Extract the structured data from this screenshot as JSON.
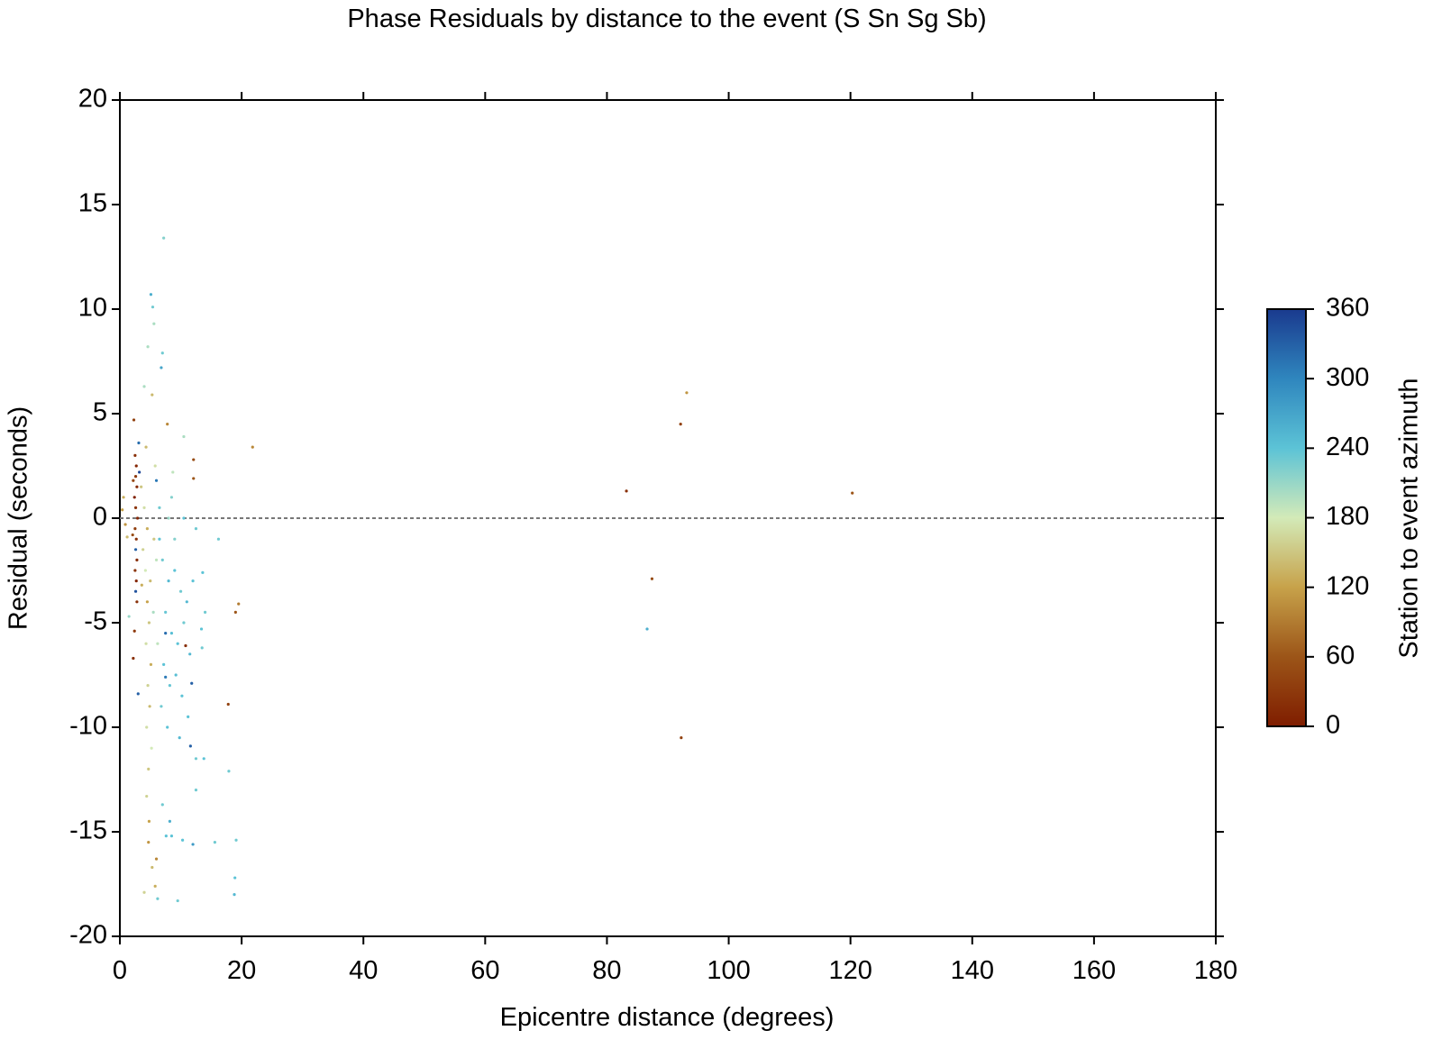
{
  "chart_data": {
    "type": "scatter",
    "title": "Phase Residuals by distance to the event (S Sn Sg Sb)",
    "x_label": "Epicentre distance (degrees)",
    "y_label": "Residual (seconds)",
    "xlim": [
      0,
      180
    ],
    "xticks": [
      0,
      20,
      40,
      60,
      80,
      100,
      120,
      140,
      160,
      180
    ],
    "ylim": [
      -20,
      20
    ],
    "yticks": [
      -20,
      -15,
      -10,
      -5,
      0,
      5,
      10,
      15,
      20
    ],
    "reference_line": 0,
    "colorbar": {
      "label": "Station to event azimuth",
      "lim": [
        0,
        360
      ],
      "ticks": [
        0,
        60,
        120,
        180,
        240,
        300,
        360
      ],
      "colors": [
        "#7f1d00",
        "#9c5518",
        "#c7a24a",
        "#d3eab8",
        "#5cc3d6",
        "#2f86be",
        "#1a3a8e"
      ]
    },
    "x": [
      21.8,
      83.2,
      93.1,
      92.1,
      120.3,
      87.4,
      86.6,
      92.2,
      19.5,
      19.0,
      17.8,
      17.9,
      18.9,
      18.8,
      19.1,
      15.6,
      16.2,
      7.2,
      5.1,
      5.4,
      5.6,
      4.6,
      7.0,
      6.8,
      4.0,
      5.3,
      2.5,
      2.7,
      2.6,
      2.8,
      2.4,
      2.6,
      2.9,
      2.5,
      2.7,
      2.6,
      2.8,
      2.5,
      2.7,
      2.6,
      2.8,
      2.3,
      2.4,
      2.2,
      3.0,
      3.1,
      3.2,
      2.2,
      2.1,
      1.5,
      3.5,
      4.0,
      4.5,
      3.8,
      4.2,
      5.0,
      4.5,
      4.8,
      4.3,
      5.1,
      4.6,
      4.9,
      4.4,
      5.2,
      4.7,
      4.4,
      4.8,
      4.7,
      5.3,
      4.0,
      5.8,
      6.0,
      0.6,
      0.9,
      1.2,
      0.4,
      6.0,
      5.5,
      6.2,
      5.8,
      4.3,
      7.8,
      8.7,
      5.6,
      3.6,
      6.5,
      7.0,
      8.0,
      9.0,
      10.0,
      11.0,
      12.0,
      7.5,
      8.5,
      9.5,
      10.5,
      11.5,
      7.2,
      8.2,
      9.2,
      10.2,
      6.8,
      7.8,
      9.8,
      11.2,
      12.5,
      13.8,
      12.5,
      8.2,
      8.5,
      7.6,
      9.5,
      6.2,
      7.0,
      12.0,
      10.3,
      6.5,
      8.5,
      10.5,
      12.5,
      13.6,
      14.0,
      13.4,
      13.5,
      10.5,
      10.8,
      12.1,
      12.1,
      11.6,
      11.8,
      7.5,
      6.0,
      7.5,
      8.0,
      9.0
    ],
    "values": [
      3.4,
      1.3,
      6.0,
      4.5,
      1.2,
      -2.9,
      -5.3,
      -10.5,
      -4.1,
      -4.5,
      -8.9,
      -12.1,
      -17.2,
      -18.0,
      -15.4,
      -15.5,
      -1.0,
      13.4,
      10.7,
      10.1,
      9.3,
      8.2,
      7.9,
      7.2,
      6.3,
      5.9,
      3.0,
      2.5,
      2.0,
      1.5,
      1.0,
      0.5,
      0.0,
      -0.5,
      -1.0,
      -1.5,
      -2.0,
      -2.5,
      -3.0,
      -3.5,
      -4.0,
      4.7,
      -5.4,
      -6.7,
      -8.4,
      3.6,
      2.2,
      1.8,
      -0.8,
      -4.7,
      1.5,
      0.5,
      -0.5,
      -1.5,
      -2.5,
      -3.0,
      -4.0,
      -5.0,
      -6.0,
      -7.0,
      -8.0,
      -9.0,
      -10.0,
      -11.0,
      -12.0,
      -13.3,
      -14.5,
      -15.5,
      -16.7,
      -17.9,
      -17.6,
      -16.3,
      1.0,
      -0.3,
      -0.9,
      0.4,
      -2.0,
      -4.5,
      -6.0,
      2.5,
      3.4,
      4.5,
      2.2,
      -1.0,
      -3.2,
      -1.0,
      -2.0,
      -3.0,
      -2.5,
      -3.5,
      -4.0,
      -3.0,
      -4.5,
      -5.5,
      -6.0,
      -5.0,
      -6.5,
      -7.0,
      -8.0,
      -7.5,
      -8.5,
      -9.0,
      -10.0,
      -10.5,
      -9.5,
      -11.5,
      -11.5,
      -13.0,
      -14.5,
      -15.2,
      -15.2,
      -18.3,
      -18.2,
      -13.7,
      -15.6,
      -15.4,
      0.5,
      1.0,
      0.0,
      -0.5,
      -2.6,
      -4.5,
      -5.3,
      -6.2,
      3.9,
      -6.1,
      2.8,
      1.9,
      -10.9,
      -7.9,
      -7.6,
      1.8,
      -5.5,
      0.0,
      -1.0
    ],
    "color_values": [
      100,
      20,
      110,
      40,
      60,
      50,
      260,
      40,
      90,
      60,
      40,
      230,
      240,
      250,
      230,
      230,
      230,
      220,
      260,
      230,
      200,
      200,
      230,
      270,
      200,
      140,
      20,
      10,
      30,
      15,
      5,
      25,
      10,
      35,
      20,
      330,
      15,
      25,
      10,
      340,
      20,
      40,
      30,
      20,
      330,
      320,
      350,
      45,
      50,
      210,
      150,
      170,
      130,
      160,
      180,
      140,
      120,
      150,
      170,
      130,
      160,
      140,
      170,
      180,
      150,
      160,
      120,
      110,
      140,
      160,
      130,
      100,
      130,
      110,
      140,
      120,
      190,
      200,
      190,
      170,
      140,
      100,
      190,
      150,
      130,
      240,
      230,
      250,
      240,
      230,
      250,
      240,
      235,
      245,
      240,
      230,
      250,
      240,
      235,
      245,
      240,
      230,
      240,
      250,
      240,
      230,
      240,
      230,
      260,
      240,
      240,
      230,
      230,
      230,
      280,
      240,
      230,
      220,
      240,
      230,
      240,
      230,
      240,
      230,
      200,
      20,
      50,
      60,
      330,
      330,
      310,
      310,
      320,
      210,
      220
    ]
  }
}
